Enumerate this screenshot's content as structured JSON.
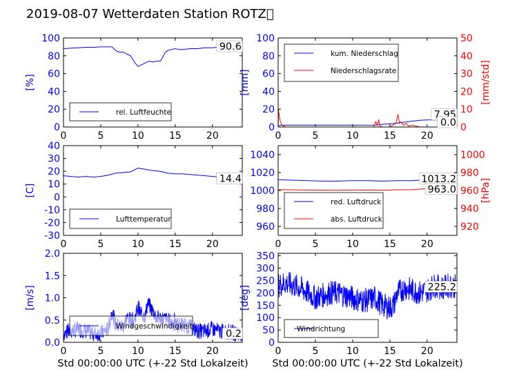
{
  "title": "2019-08-07 Wetterdaten Station ROTZ\u0000",
  "colors": {
    "primary": "#0000ff",
    "secondary": "#ff0000",
    "axis": "#000000"
  },
  "chart_data": [
    {
      "type": "line",
      "xlim": [
        0,
        24
      ],
      "ylim": [
        0,
        100
      ],
      "xticks": [
        0,
        5,
        10,
        15,
        20
      ],
      "yticks": [
        0,
        20,
        40,
        60,
        80,
        100
      ],
      "ylabel": "[%]",
      "xlabel": "",
      "legend_placement": "lower-left",
      "last_value_label": "90.6",
      "series": [
        {
          "name": "rel. Luftfeuchte",
          "color": "#0000ff",
          "x": [
            0,
            1,
            2,
            3,
            4,
            5,
            6,
            6.5,
            7,
            7.5,
            8,
            8.5,
            9,
            9.3,
            9.6,
            10,
            10.5,
            11,
            11.5,
            12,
            12.5,
            13,
            13.3,
            13.6,
            14,
            14.5,
            15,
            15.5,
            16,
            17,
            18,
            19,
            20,
            21,
            22,
            23,
            23.8
          ],
          "y": [
            88,
            88.5,
            89,
            89.5,
            89.5,
            90,
            90,
            90,
            86,
            84,
            84,
            82,
            80,
            76,
            72,
            68,
            70,
            72,
            74,
            73,
            74,
            74,
            78,
            83,
            86,
            87,
            88,
            87,
            87,
            88,
            88,
            89,
            89,
            90,
            90,
            90.5,
            90.6
          ]
        }
      ]
    },
    {
      "type": "line",
      "xlim": [
        0,
        24
      ],
      "ylim": [
        0,
        100
      ],
      "y2lim": [
        0,
        50
      ],
      "xticks": [
        0,
        5,
        10,
        15,
        20
      ],
      "yticks": [
        0,
        20,
        40,
        60,
        80,
        100
      ],
      "y2ticks": [
        0,
        10,
        20,
        30,
        40,
        50
      ],
      "ylabel": "[mm]",
      "y2label": "[mm/std]",
      "legend_placement": "upper-left",
      "last_value_labels": [
        "7.95",
        "0.0"
      ],
      "series": [
        {
          "name": "kum. Niederschlag",
          "color": "#0000ff",
          "axis": "left",
          "x": [
            0,
            0.3,
            1,
            5,
            10,
            13,
            13.5,
            14,
            15,
            16,
            17,
            18,
            19,
            20,
            22,
            24
          ],
          "y": [
            1,
            2,
            2,
            2,
            2,
            2.2,
            2.5,
            3,
            3.5,
            4.5,
            5.5,
            6.5,
            7.5,
            7.9,
            7.95,
            7.95
          ]
        }
      ],
      "series_right": [
        {
          "name": "Niederschlagsrate",
          "color": "#ff0000",
          "axis": "right",
          "x": [
            0,
            0.05,
            0.15,
            0.3,
            0.5,
            1,
            12.8,
            13.1,
            13.3,
            13.5,
            13.7,
            14,
            15,
            15.8,
            16.1,
            16.3,
            16.5,
            16.8,
            17.2,
            17.5,
            18,
            19,
            24
          ],
          "y": [
            0,
            10,
            6,
            3,
            1,
            0,
            0,
            3,
            1,
            4,
            0.5,
            0,
            0,
            2,
            7,
            2,
            3,
            1,
            2,
            0.5,
            1,
            0,
            0
          ]
        }
      ]
    },
    {
      "type": "line",
      "xlim": [
        0,
        24
      ],
      "ylim": [
        -30,
        40
      ],
      "xticks": [
        0,
        5,
        10,
        15,
        20
      ],
      "yticks": [
        -30,
        -20,
        -10,
        0,
        10,
        20,
        30,
        40
      ],
      "ylabel": "[C]",
      "legend_placement": "lower-left",
      "last_value_label": "14.4",
      "series": [
        {
          "name": "Lufttemperatur",
          "color": "#0000ff",
          "x": [
            0,
            1,
            2,
            3,
            4,
            5,
            6,
            7,
            8,
            9,
            9.5,
            10,
            10.5,
            11,
            12,
            13,
            14,
            15,
            16,
            17,
            18,
            19,
            20,
            21,
            22,
            23,
            23.8
          ],
          "y": [
            16.5,
            16,
            15.5,
            16,
            15.5,
            16,
            17,
            18.5,
            19,
            19.5,
            21,
            22.5,
            22,
            21.5,
            20.5,
            20,
            18.5,
            18,
            18,
            17.5,
            17,
            16.5,
            16,
            15.5,
            15,
            14.8,
            14.4
          ]
        }
      ]
    },
    {
      "type": "line",
      "xlim": [
        0,
        24
      ],
      "ylim": [
        950,
        1050
      ],
      "y2lim": [
        910,
        1010
      ],
      "xticks": [
        0,
        5,
        10,
        15,
        20
      ],
      "yticks": [
        960,
        980,
        1000,
        1020,
        1040
      ],
      "y2ticks": [
        920,
        940,
        960,
        980,
        1000
      ],
      "ylabel": "",
      "y2label": "[hPa]",
      "legend_placement": "lower-left",
      "last_value_labels": [
        "1013.2",
        "963.0"
      ],
      "series": [
        {
          "name": "red. Luftdruck",
          "color": "#0000ff",
          "axis": "left",
          "x": [
            0,
            2,
            4,
            6,
            8,
            10,
            12,
            14,
            16,
            18,
            20,
            22,
            24
          ],
          "y": [
            1012,
            1011.5,
            1011,
            1010.5,
            1010.5,
            1011,
            1011,
            1010.5,
            1011,
            1011,
            1012,
            1012.8,
            1013.2
          ]
        }
      ],
      "series_right": [
        {
          "name": "abs. Luftdruck",
          "color": "#ff0000",
          "axis": "right",
          "x": [
            0,
            2,
            4,
            6,
            8,
            10,
            12,
            14,
            16,
            18,
            20,
            22,
            24
          ],
          "y": [
            961,
            960.8,
            960.5,
            960.3,
            960.2,
            960.5,
            960.6,
            960.3,
            960.8,
            961,
            962,
            962.5,
            963
          ]
        }
      ]
    },
    {
      "type": "line",
      "xlim": [
        0,
        24
      ],
      "ylim": [
        0,
        2.0
      ],
      "xticks": [
        0,
        5,
        10,
        15,
        20
      ],
      "yticks": [
        0.0,
        0.5,
        1.0,
        1.5,
        2.0
      ],
      "ylabel": "[m/s]",
      "xlabel": "Std 00:00:00 UTC (+-22 Std Lokalzeit)",
      "legend_placement": "lower-left",
      "last_value_label": "0.2",
      "series": [
        {
          "name": "Windgeschwindigkeit",
          "color": "#0000ff",
          "noisy": true,
          "x": [
            0,
            1,
            2,
            3,
            4,
            5,
            6,
            6.5,
            7,
            8,
            8.5,
            9,
            9.5,
            10,
            10.5,
            11,
            11.3,
            11.6,
            12,
            12.5,
            13,
            14,
            15,
            16,
            17,
            18,
            19,
            20,
            21,
            22,
            23,
            24
          ],
          "y": [
            0.2,
            0.25,
            0.3,
            0.25,
            0.2,
            0.2,
            0.3,
            0.7,
            0.4,
            0.35,
            0.55,
            0.5,
            0.5,
            0.8,
            0.6,
            0.6,
            0.9,
            0.8,
            0.7,
            0.55,
            0.55,
            0.5,
            0.4,
            0.4,
            0.35,
            0.25,
            0.25,
            0.3,
            0.25,
            0.25,
            0.2,
            0.2
          ]
        }
      ]
    },
    {
      "type": "line",
      "xlim": [
        0,
        24
      ],
      "ylim": [
        0,
        360
      ],
      "xticks": [
        0,
        5,
        10,
        15,
        20
      ],
      "yticks": [
        0,
        50,
        100,
        150,
        200,
        250,
        300,
        350
      ],
      "ylabel": "[deg]",
      "xlabel": "Std 00:00:00 UTC (+-22 Std Lokalzeit)",
      "legend_placement": "lower-left",
      "last_value_label": "225.2",
      "series": [
        {
          "name": "Windrichtung",
          "color": "#0000ff",
          "noisy": true,
          "x": [
            0,
            1,
            2,
            3,
            4,
            5,
            6,
            7,
            8,
            9,
            10,
            11,
            12,
            13,
            14,
            15,
            15.5,
            16,
            17,
            18,
            19,
            20,
            21,
            22,
            23,
            24
          ],
          "y": [
            230,
            240,
            230,
            220,
            200,
            180,
            190,
            200,
            200,
            190,
            180,
            170,
            170,
            180,
            150,
            140,
            150,
            200,
            220,
            210,
            200,
            210,
            230,
            220,
            230,
            225
          ]
        }
      ]
    }
  ]
}
